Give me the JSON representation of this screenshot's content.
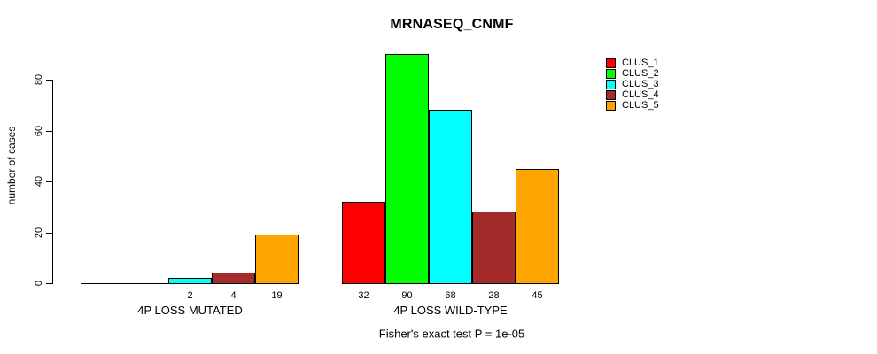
{
  "title": "MRNASEQ_CNMF",
  "y_axis": {
    "label": "number of cases",
    "tick_labels": [
      "0",
      "20",
      "40",
      "60",
      "80"
    ]
  },
  "annotation": "Fisher's exact test P = 1e-05",
  "legend": {
    "items": [
      {
        "label": "CLUS_1",
        "color": "#ff0000"
      },
      {
        "label": "CLUS_2",
        "color": "#00ff00"
      },
      {
        "label": "CLUS_3",
        "color": "#00ffff"
      },
      {
        "label": "CLUS_4",
        "color": "#a52a2a"
      },
      {
        "label": "CLUS_5",
        "color": "#ffa500"
      }
    ]
  },
  "chart_data": {
    "type": "bar",
    "title": "MRNASEQ_CNMF",
    "xlabel": "",
    "ylabel": "number of cases",
    "ylim": [
      0,
      92
    ],
    "yticks": [
      0,
      20,
      40,
      60,
      80
    ],
    "grid": false,
    "legend_position": "top-right",
    "series": [
      "CLUS_1",
      "CLUS_2",
      "CLUS_3",
      "CLUS_4",
      "CLUS_5"
    ],
    "colors": [
      "#ff0000",
      "#00ff00",
      "#00ffff",
      "#a52a2a",
      "#ffa500"
    ],
    "groups": [
      {
        "label": "4P LOSS MUTATED",
        "values": [
          0,
          0,
          2,
          4,
          19
        ]
      },
      {
        "label": "4P LOSS WILD-TYPE",
        "values": [
          32,
          90,
          68,
          28,
          45
        ]
      }
    ],
    "bar_value_labels_hidden_when_zero": true,
    "annotation": "Fisher's exact test P = 1e-05"
  }
}
